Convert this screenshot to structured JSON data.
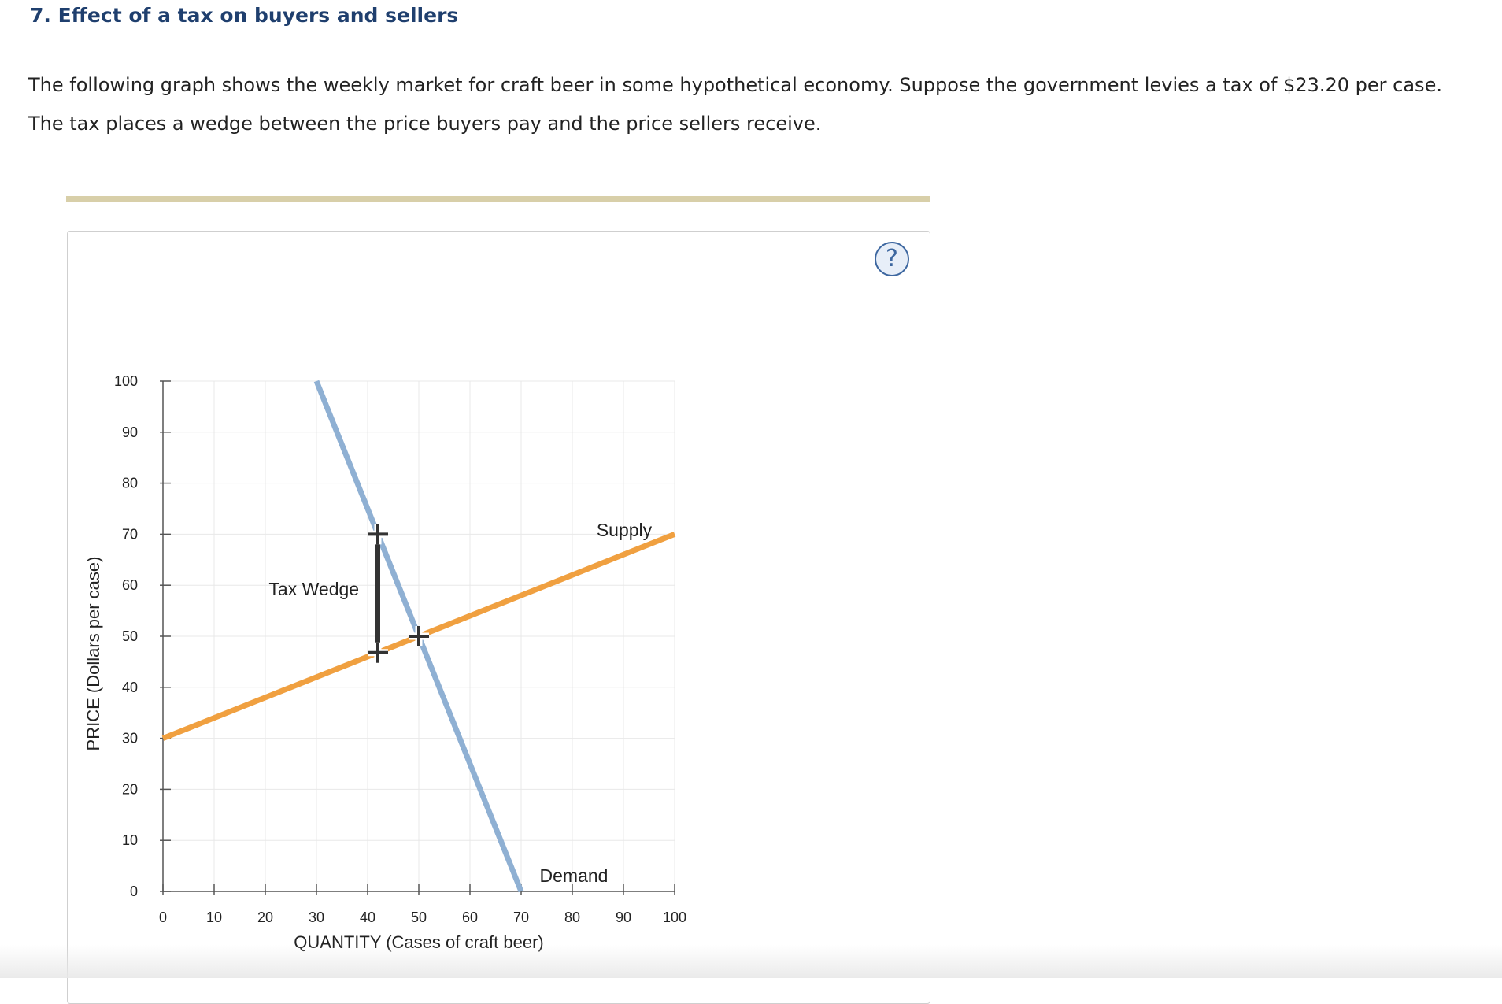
{
  "question": {
    "title": "7. Effect of a tax on buyers and sellers",
    "intro_line1": "The following graph shows the weekly market for craft beer in some hypothetical economy. Suppose the government levies a tax of $23.20 per case.",
    "intro_line2": "The tax places a wedge between the price buyers pay and the price sellers receive."
  },
  "help": {
    "label": "?",
    "icon": "question-mark-icon"
  },
  "colors": {
    "supply": "#f0a040",
    "demand": "#8fb0d3",
    "wedge": "#333333",
    "grid": "#e8e8e8",
    "axis": "#555555",
    "title": "#1f3f6e"
  },
  "chart_data": {
    "type": "line",
    "xlabel": "QUANTITY (Cases of craft beer)",
    "ylabel": "PRICE (Dollars per case)",
    "xlim": [
      0,
      100
    ],
    "ylim": [
      0,
      100
    ],
    "xticks": [
      0,
      10,
      20,
      30,
      40,
      50,
      60,
      70,
      80,
      90,
      100
    ],
    "yticks": [
      0,
      10,
      20,
      30,
      40,
      50,
      60,
      70,
      80,
      90,
      100
    ],
    "grid": true,
    "series": [
      {
        "name": "Supply",
        "x": [
          0,
          100
        ],
        "y": [
          30,
          70
        ]
      },
      {
        "name": "Demand",
        "x": [
          30,
          70
        ],
        "y": [
          100,
          0
        ]
      }
    ],
    "tax_wedge": {
      "label": "Tax Wedge",
      "quantity": 42,
      "buyer_price": 70,
      "seller_price": 46.8
    },
    "equilibrium": {
      "x": 50,
      "y": 50
    },
    "annotations": [
      "Supply",
      "Demand",
      "Tax Wedge"
    ]
  }
}
